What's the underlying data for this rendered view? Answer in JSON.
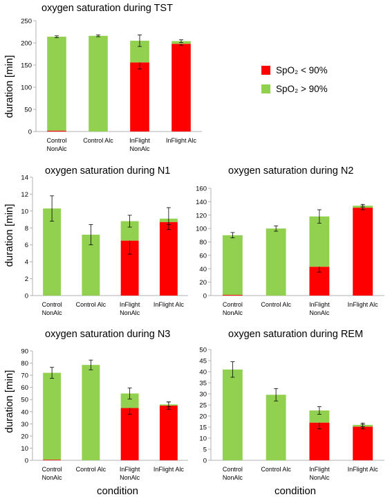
{
  "colors": {
    "low": "#ff0000",
    "high": "#92d050",
    "axis": "#b0b0b0",
    "err": "#000000"
  },
  "legend": {
    "items": [
      {
        "label": "SpO₂ < 90%",
        "color": "#ff0000"
      },
      {
        "label": "SpO₂ > 90%",
        "color": "#92d050"
      }
    ]
  },
  "figure": {
    "xlabel": "condition",
    "ylabel": "duration [min]"
  },
  "chart_data": [
    {
      "type": "bar",
      "stacked": true,
      "title": "oxygen saturation during TST",
      "categories": [
        "Control\nNonAlc",
        "Control Alc",
        "InFlight\nNonAlc",
        "InFlight Alc"
      ],
      "series": [
        {
          "name": "SpO₂ < 90%",
          "values": [
            2,
            0,
            156,
            198
          ],
          "err": [
            0,
            0,
            15,
            3
          ]
        },
        {
          "name": "SpO₂ > 90%",
          "values": [
            212,
            216,
            49,
            6
          ],
          "err": [
            2,
            2,
            13,
            3
          ]
        }
      ],
      "ylim": [
        0,
        250
      ],
      "yticks": [
        0,
        50,
        100,
        150,
        200,
        250
      ],
      "ylabel": "duration [min]",
      "xlabel": ""
    },
    {
      "type": "bar",
      "stacked": true,
      "title": "oxygen saturation during N1",
      "categories": [
        "Control\nNonAlc",
        "Control Alc",
        "InFlight\nNonAlc",
        "InFlight Alc"
      ],
      "series": [
        {
          "name": "SpO₂ < 90%",
          "values": [
            0,
            0,
            6.5,
            8.7
          ],
          "err": [
            0,
            0,
            1.6,
            0.3
          ]
        },
        {
          "name": "SpO₂ > 90%",
          "values": [
            10.3,
            7.2,
            2.3,
            0.4
          ],
          "err": [
            1.5,
            1.2,
            0.7,
            1.3
          ]
        }
      ],
      "ylim": [
        0,
        14
      ],
      "yticks": [
        0,
        2,
        4,
        6,
        8,
        10,
        12,
        14
      ],
      "ylabel": "duration [min]",
      "xlabel": ""
    },
    {
      "type": "bar",
      "stacked": true,
      "title": "oxygen saturation during N2",
      "categories": [
        "Control\nNonAlc",
        "Control Alc",
        "InFlight\nNonAlc",
        "InFlight Alc"
      ],
      "series": [
        {
          "name": "SpO₂ < 90%",
          "values": [
            1,
            0,
            43,
            131
          ],
          "err": [
            0,
            0,
            8,
            3
          ]
        },
        {
          "name": "SpO₂ > 90%",
          "values": [
            89,
            100,
            75,
            3
          ],
          "err": [
            4,
            4,
            10,
            2
          ]
        }
      ],
      "ylim": [
        0,
        160
      ],
      "yticks": [
        0,
        20,
        40,
        60,
        80,
        100,
        120,
        140,
        160
      ],
      "ylabel": "",
      "xlabel": ""
    },
    {
      "type": "bar",
      "stacked": true,
      "title": "oxygen saturation during N3",
      "categories": [
        "Control\nNonAlc",
        "Control Alc",
        "InFlight\nNonAlc",
        "InFlight Alc"
      ],
      "series": [
        {
          "name": "SpO₂ < 90%",
          "values": [
            0.5,
            0,
            43,
            45
          ],
          "err": [
            0,
            0,
            5,
            3
          ]
        },
        {
          "name": "SpO₂ > 90%",
          "values": [
            71.5,
            78.5,
            12,
            1
          ],
          "err": [
            4.5,
            4,
            4.5,
            2
          ]
        }
      ],
      "ylim": [
        0,
        90
      ],
      "yticks": [
        0,
        10,
        20,
        30,
        40,
        50,
        60,
        70,
        80,
        90
      ],
      "ylabel": "duration [min]",
      "xlabel": "condition"
    },
    {
      "type": "bar",
      "stacked": true,
      "title": "oxygen saturation during REM",
      "categories": [
        "Control\nNonAlc",
        "Control Alc",
        "InFlight\nNonAlc",
        "InFlight Alc"
      ],
      "series": [
        {
          "name": "SpO₂ < 90%",
          "values": [
            0,
            0,
            17,
            15.2
          ],
          "err": [
            0,
            0,
            2.8,
            1
          ]
        },
        {
          "name": "SpO₂ > 90%",
          "values": [
            41,
            29.6,
            5.5,
            0.8
          ],
          "err": [
            3.5,
            2.8,
            1.7,
            0.8
          ]
        }
      ],
      "ylim": [
        0,
        50
      ],
      "yticks": [
        0,
        5,
        10,
        15,
        20,
        25,
        30,
        35,
        40,
        45,
        50
      ],
      "ylabel": "",
      "xlabel": "condition"
    }
  ]
}
